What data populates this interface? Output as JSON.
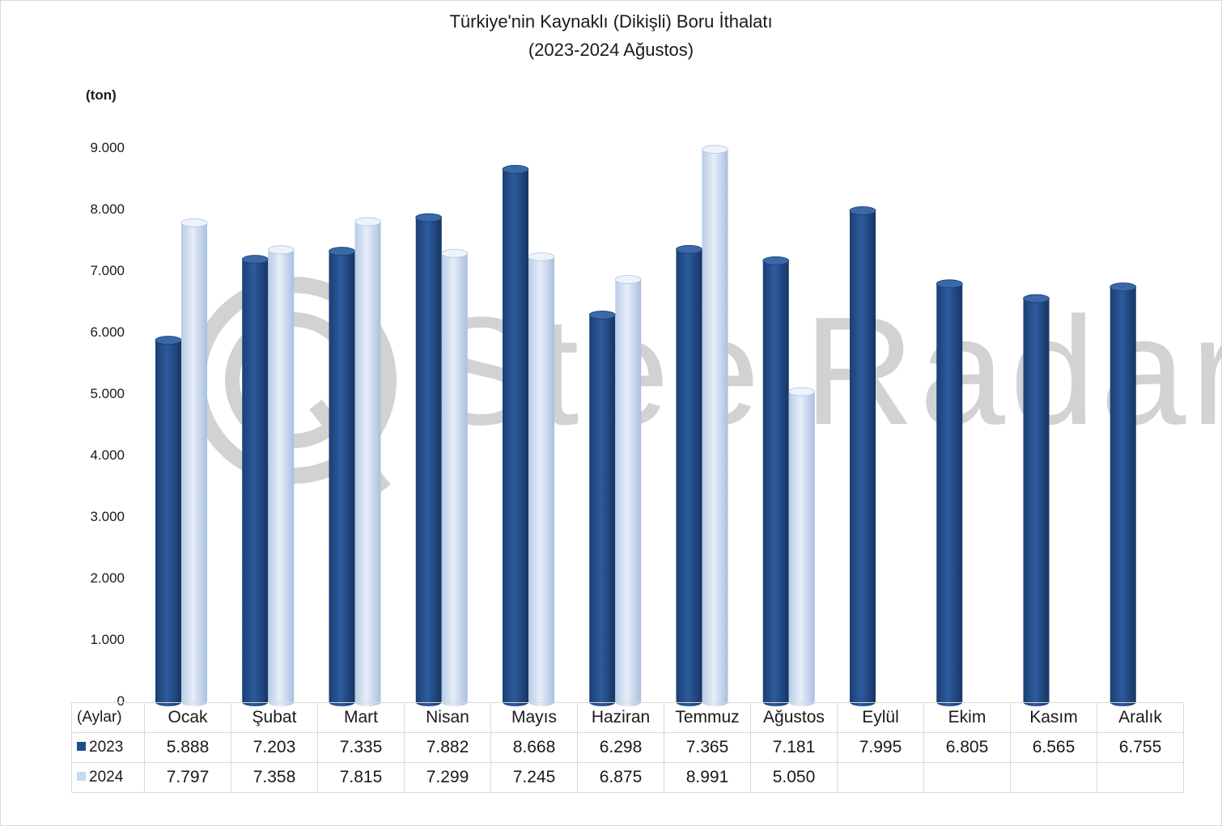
{
  "chart_data": {
    "type": "bar",
    "title": "Türkiye'nin Kaynaklı (Dikişli) Boru İthalatı",
    "subtitle": "(2023-2024 Ağustos)",
    "ylabel": "(ton)",
    "xlabel": "(Aylar)",
    "ylim": [
      0,
      9000
    ],
    "yticks": [
      "0",
      "1.000",
      "2.000",
      "3.000",
      "4.000",
      "5.000",
      "6.000",
      "7.000",
      "8.000",
      "9.000"
    ],
    "categories": [
      "Ocak",
      "Şubat",
      "Mart",
      "Nisan",
      "Mayıs",
      "Haziran",
      "Temmuz",
      "Ağustos",
      "Eylül",
      "Ekim",
      "Kasım",
      "Aralık"
    ],
    "series": [
      {
        "name": "2023",
        "color": "#1f4e8c",
        "values": [
          5888,
          7203,
          7335,
          7882,
          8668,
          6298,
          7365,
          7181,
          7995,
          6805,
          6565,
          6755
        ],
        "labels": [
          "5.888",
          "7.203",
          "7.335",
          "7.882",
          "8.668",
          "6.298",
          "7.365",
          "7.181",
          "7.995",
          "6.805",
          "6.565",
          "6.755"
        ]
      },
      {
        "name": "2024",
        "color": "#c5d9f1",
        "values": [
          7797,
          7358,
          7815,
          7299,
          7245,
          6875,
          8991,
          5050,
          null,
          null,
          null,
          null
        ],
        "labels": [
          "7.797",
          "7.358",
          "7.815",
          "7.299",
          "7.245",
          "6.875",
          "8.991",
          "5.050",
          "",
          "",
          "",
          ""
        ]
      }
    ],
    "legend": "data-table",
    "grid": false
  },
  "watermark": "SteelRadar"
}
